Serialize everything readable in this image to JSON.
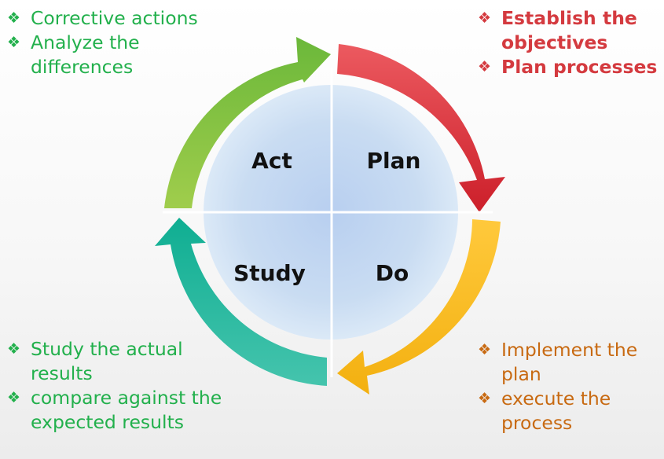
{
  "diagram": {
    "quadrants": {
      "act": "Act",
      "plan": "Plan",
      "study": "Study",
      "do": "Do"
    }
  },
  "notes": {
    "act": [
      "Corrective actions",
      "Analyze the differences"
    ],
    "plan": [
      "Establish the objectives",
      "Plan processes"
    ],
    "study": [
      "Study the actual results",
      "compare against the expected results"
    ],
    "do": [
      "Implement the plan",
      "execute the process"
    ]
  },
  "bullet_glyph": "❖",
  "colors": {
    "act_text": "#22b04c",
    "plan_text": "#d43a3f",
    "study_text": "#22b04c",
    "do_text": "#c86a12",
    "act_arrow": "#7cc13c",
    "plan_arrow": "#d9303a",
    "do_arrow": "#fbbd22",
    "study_arrow": "#1fb495",
    "circle_fill": "#c8dcf0"
  }
}
